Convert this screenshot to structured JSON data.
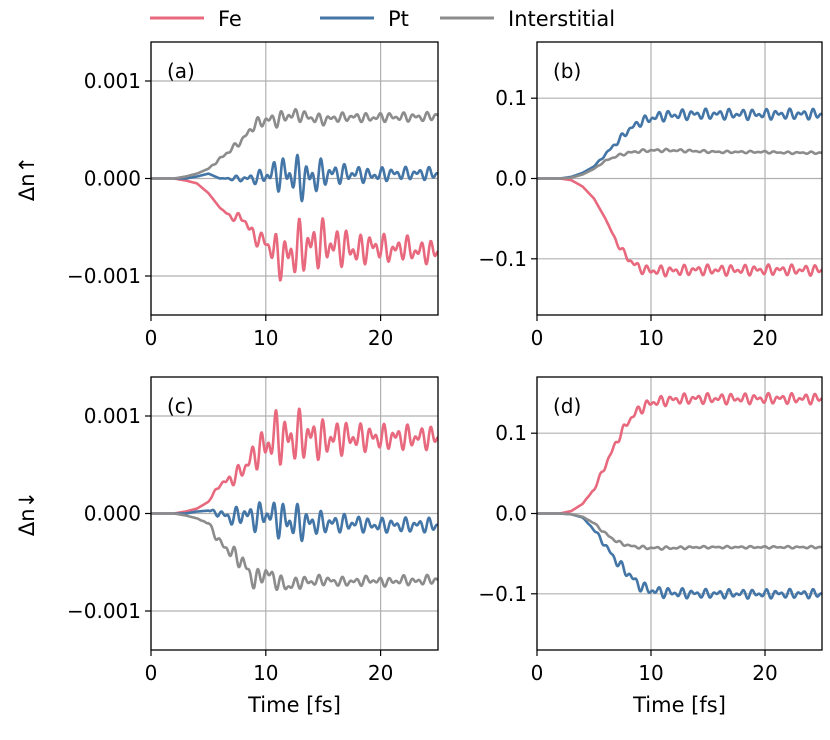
{
  "figure": {
    "legend": [
      {
        "label": "Fe",
        "color": "#e8697e"
      },
      {
        "label": "Pt",
        "color": "#4375a6"
      },
      {
        "label": "Interstitial",
        "color": "#8c8c8c"
      }
    ],
    "legend_placement": "top-center",
    "grid": true
  },
  "chart_data": [
    {
      "type": "line",
      "panel_label": "(a)",
      "ylabel": "Δn↑",
      "xlabel": "",
      "xlim": [
        0,
        25
      ],
      "ylim": [
        -0.0014,
        0.0014
      ],
      "xticks": [
        0,
        10,
        20
      ],
      "yticks": [
        -0.001,
        0,
        0.001
      ],
      "ytick_labels": [
        "−0.001",
        "0.000",
        "0.001"
      ],
      "series": [
        {
          "name": "Fe",
          "x": [
            0,
            2,
            3,
            4,
            5,
            6,
            7,
            8,
            9,
            10,
            11,
            12,
            13,
            14,
            15,
            16,
            17,
            18,
            19,
            20,
            21,
            22,
            23,
            24,
            25
          ],
          "y": [
            0,
            0,
            -2e-05,
            -5e-05,
            -0.00015,
            -0.0003,
            -0.0004,
            -0.0004,
            -0.0006,
            -0.00065,
            -0.0008,
            -0.0008,
            -0.0007,
            -0.0007,
            -0.00065,
            -0.0007,
            -0.0007,
            -0.00075,
            -0.0007,
            -0.0007,
            -0.00075,
            -0.0007,
            -0.00075,
            -0.00075,
            -0.00075
          ],
          "osc_amp": [
            0,
            0,
            0,
            0,
            0,
            0,
            3e-05,
            6e-05,
            8e-05,
            0.0001,
            0.00025,
            0.00028,
            0.0003,
            0.0003,
            0.00025,
            0.00022,
            0.0002,
            0.00018,
            0.00016,
            0.00015,
            0.00014,
            0.00014,
            0.00013,
            0.00013,
            0.00013
          ]
        },
        {
          "name": "Pt",
          "x": [
            0,
            2,
            3,
            4,
            5,
            6,
            7,
            8,
            9,
            10,
            11,
            12,
            13,
            14,
            15,
            16,
            17,
            18,
            19,
            20,
            21,
            22,
            23,
            24,
            25
          ],
          "y": [
            0,
            0,
            0,
            2e-05,
            5e-05,
            0,
            0,
            0,
            0,
            3e-05,
            5e-05,
            5e-05,
            0,
            0,
            5e-05,
            5e-05,
            5e-05,
            5e-05,
            3e-05,
            4e-05,
            5e-05,
            5e-05,
            5e-05,
            5e-05,
            5e-05
          ],
          "osc_amp": [
            0,
            0,
            0,
            0,
            0,
            0,
            2e-05,
            4e-05,
            6e-05,
            0.0001,
            0.00018,
            0.00022,
            0.00025,
            0.00022,
            0.00015,
            0.00012,
            0.0001,
            9e-05,
            8e-05,
            8e-05,
            7e-05,
            7e-05,
            7e-05,
            7e-05,
            7e-05
          ]
        },
        {
          "name": "Interstitial",
          "x": [
            0,
            2,
            3,
            4,
            5,
            6,
            7,
            8,
            9,
            10,
            11,
            12,
            13,
            14,
            15,
            16,
            17,
            18,
            19,
            20,
            21,
            22,
            23,
            24,
            25
          ],
          "y": [
            0,
            0,
            2e-05,
            5e-05,
            0.0001,
            0.0002,
            0.0003,
            0.0004,
            0.00055,
            0.0006,
            0.0006,
            0.00065,
            0.00065,
            0.00062,
            0.0006,
            0.00062,
            0.00063,
            0.00063,
            0.00062,
            0.00063,
            0.00063,
            0.00063,
            0.00063,
            0.00063,
            0.00065
          ],
          "osc_amp": [
            0,
            0,
            0,
            0,
            0,
            2e-05,
            3e-05,
            4e-05,
            6e-05,
            7e-05,
            8e-05,
            8e-05,
            7e-05,
            6e-05,
            6e-05,
            5e-05,
            5e-05,
            5e-05,
            5e-05,
            5e-05,
            5e-05,
            5e-05,
            5e-05,
            5e-05,
            5e-05
          ]
        }
      ]
    },
    {
      "type": "line",
      "panel_label": "(b)",
      "ylabel": "",
      "xlabel": "",
      "xlim": [
        0,
        25
      ],
      "ylim": [
        -0.17,
        0.17
      ],
      "xticks": [
        0,
        10,
        20
      ],
      "yticks": [
        -0.1,
        0,
        0.1
      ],
      "ytick_labels": [
        "−0.1",
        "0.0",
        "0.1"
      ],
      "series": [
        {
          "name": "Fe",
          "x": [
            0,
            2,
            3,
            4,
            5,
            6,
            7,
            8,
            9,
            10,
            11,
            12,
            14,
            16,
            18,
            20,
            22,
            24,
            25
          ],
          "y": [
            0,
            0,
            -0.002,
            -0.01,
            -0.025,
            -0.05,
            -0.08,
            -0.1,
            -0.112,
            -0.115,
            -0.115,
            -0.115,
            -0.114,
            -0.114,
            -0.114,
            -0.114,
            -0.114,
            -0.114,
            -0.114
          ],
          "osc_amp": [
            0,
            0,
            0,
            0,
            0,
            0,
            0.003,
            0.005,
            0.006,
            0.007,
            0.007,
            0.007,
            0.007,
            0.007,
            0.007,
            0.007,
            0.007,
            0.007,
            0.007
          ]
        },
        {
          "name": "Pt",
          "x": [
            0,
            2,
            3,
            4,
            5,
            6,
            7,
            8,
            9,
            10,
            11,
            12,
            14,
            16,
            18,
            20,
            22,
            24,
            25
          ],
          "y": [
            0,
            0,
            0.002,
            0.007,
            0.015,
            0.03,
            0.045,
            0.06,
            0.07,
            0.075,
            0.078,
            0.079,
            0.08,
            0.08,
            0.08,
            0.08,
            0.08,
            0.08,
            0.08
          ],
          "osc_amp": [
            0,
            0,
            0,
            0,
            0,
            0.002,
            0.004,
            0.005,
            0.006,
            0.007,
            0.007,
            0.007,
            0.007,
            0.007,
            0.007,
            0.007,
            0.007,
            0.007,
            0.007
          ]
        },
        {
          "name": "Interstitial",
          "x": [
            0,
            2,
            3,
            4,
            5,
            6,
            7,
            8,
            9,
            10,
            11,
            12,
            14,
            16,
            18,
            20,
            22,
            24,
            25
          ],
          "y": [
            0,
            0,
            0.001,
            0.005,
            0.012,
            0.022,
            0.028,
            0.032,
            0.034,
            0.035,
            0.035,
            0.035,
            0.034,
            0.033,
            0.033,
            0.033,
            0.032,
            0.032,
            0.032
          ],
          "osc_amp": [
            0,
            0,
            0,
            0,
            0,
            0.001,
            0.0015,
            0.002,
            0.002,
            0.002,
            0.002,
            0.002,
            0.0018,
            0.0015,
            0.0015,
            0.0015,
            0.0015,
            0.0015,
            0.0015
          ]
        }
      ]
    },
    {
      "type": "line",
      "panel_label": "(c)",
      "ylabel": "Δn↓",
      "xlabel": "Time [fs]",
      "xlim": [
        0,
        25
      ],
      "ylim": [
        -0.0014,
        0.0014
      ],
      "xticks": [
        0,
        10,
        20
      ],
      "yticks": [
        -0.001,
        0,
        0.001
      ],
      "ytick_labels": [
        "−0.001",
        "0.000",
        "0.001"
      ],
      "series": [
        {
          "name": "Fe",
          "x": [
            0,
            2,
            3,
            4,
            5,
            6,
            7,
            8,
            9,
            10,
            11,
            12,
            13,
            14,
            15,
            16,
            17,
            18,
            19,
            20,
            21,
            22,
            23,
            24,
            25
          ],
          "y": [
            0,
            0,
            2e-05,
            5e-05,
            0.00012,
            0.0003,
            0.00035,
            0.00045,
            0.0006,
            0.0007,
            0.0008,
            0.00075,
            0.0008,
            0.00078,
            0.00075,
            0.00078,
            0.00078,
            0.00078,
            0.00078,
            0.00078,
            0.00078,
            0.00078,
            0.00078,
            0.00078,
            0.00078
          ],
          "osc_amp": [
            0,
            0,
            0,
            0,
            0,
            3e-05,
            8e-05,
            0.0001,
            0.00015,
            0.00025,
            0.0003,
            0.0003,
            0.00028,
            0.00025,
            0.00022,
            0.0002,
            0.00018,
            0.00016,
            0.00015,
            0.00014,
            0.00014,
            0.00014,
            0.00013,
            0.00013,
            0.00013
          ]
        },
        {
          "name": "Pt",
          "x": [
            0,
            2,
            3,
            4,
            5,
            6,
            7,
            8,
            9,
            10,
            11,
            12,
            13,
            14,
            15,
            16,
            17,
            18,
            19,
            20,
            21,
            22,
            23,
            24,
            25
          ],
          "y": [
            0,
            0,
            0,
            2e-05,
            3e-05,
            0,
            -5e-05,
            0,
            -5e-05,
            0,
            -5e-05,
            -8e-05,
            -0.0001,
            -0.0001,
            -0.0001,
            -0.0001,
            -0.0001,
            -0.0001,
            -0.00012,
            -0.00012,
            -0.00012,
            -0.00012,
            -0.00012,
            -0.00012,
            -0.00012
          ],
          "osc_amp": [
            0,
            0,
            0,
            0,
            0,
            5e-05,
            8e-05,
            0.00012,
            0.00015,
            0.00015,
            0.0002,
            0.00022,
            0.0002,
            0.00015,
            0.00012,
            0.0001,
            0.0001,
            9e-05,
            8e-05,
            8e-05,
            8e-05,
            8e-05,
            8e-05,
            8e-05,
            8e-05
          ]
        },
        {
          "name": "Interstitial",
          "x": [
            0,
            2,
            3,
            4,
            5,
            6,
            7,
            8,
            9,
            10,
            11,
            12,
            13,
            14,
            15,
            16,
            17,
            18,
            19,
            20,
            21,
            22,
            23,
            24,
            25
          ],
          "y": [
            0,
            0,
            -2e-05,
            -5e-05,
            -0.0001,
            -0.0003,
            -0.0004,
            -0.0005,
            -0.0007,
            -0.0006,
            -0.0007,
            -0.00075,
            -0.0007,
            -0.0007,
            -0.00068,
            -0.0007,
            -0.0007,
            -0.0007,
            -0.00068,
            -0.0007,
            -0.0007,
            -0.00068,
            -0.0007,
            -0.00068,
            -0.00068
          ],
          "osc_amp": [
            0,
            0,
            0,
            0,
            2e-05,
            5e-05,
            8e-05,
            0.0001,
            0.0001,
            0.0001,
            9e-05,
            8e-05,
            7e-05,
            6e-05,
            6e-05,
            5e-05,
            5e-05,
            5e-05,
            5e-05,
            5e-05,
            5e-05,
            5e-05,
            5e-05,
            5e-05,
            5e-05
          ]
        }
      ]
    },
    {
      "type": "line",
      "panel_label": "(d)",
      "ylabel": "",
      "xlabel": "Time [fs]",
      "xlim": [
        0,
        25
      ],
      "ylim": [
        -0.17,
        0.17
      ],
      "xticks": [
        0,
        10,
        20
      ],
      "yticks": [
        -0.1,
        0,
        0.1
      ],
      "ytick_labels": [
        "−0.1",
        "0.0",
        "0.1"
      ],
      "series": [
        {
          "name": "Fe",
          "x": [
            0,
            2,
            3,
            4,
            5,
            6,
            7,
            8,
            9,
            10,
            11,
            12,
            14,
            16,
            18,
            20,
            22,
            24,
            25
          ],
          "y": [
            0,
            0,
            0.003,
            0.012,
            0.03,
            0.06,
            0.09,
            0.115,
            0.13,
            0.138,
            0.14,
            0.142,
            0.143,
            0.143,
            0.143,
            0.143,
            0.143,
            0.143,
            0.143
          ],
          "osc_amp": [
            0,
            0,
            0,
            0,
            0.002,
            0.004,
            0.005,
            0.006,
            0.007,
            0.007,
            0.007,
            0.007,
            0.007,
            0.007,
            0.007,
            0.007,
            0.007,
            0.007,
            0.007
          ]
        },
        {
          "name": "Pt",
          "x": [
            0,
            2,
            3,
            4,
            5,
            6,
            7,
            8,
            9,
            10,
            11,
            12,
            14,
            16,
            18,
            20,
            22,
            24,
            25
          ],
          "y": [
            0,
            0,
            -0.001,
            -0.005,
            -0.02,
            -0.04,
            -0.06,
            -0.075,
            -0.09,
            -0.096,
            -0.098,
            -0.099,
            -0.1,
            -0.1,
            -0.1,
            -0.1,
            -0.1,
            -0.1,
            -0.1
          ],
          "osc_amp": [
            0,
            0,
            0,
            0,
            0.002,
            0.004,
            0.006,
            0.007,
            0.007,
            0.007,
            0.007,
            0.007,
            0.006,
            0.006,
            0.006,
            0.006,
            0.006,
            0.006,
            0.006
          ]
        },
        {
          "name": "Interstitial",
          "x": [
            0,
            2,
            3,
            4,
            5,
            6,
            7,
            8,
            9,
            10,
            11,
            12,
            14,
            16,
            18,
            20,
            22,
            24,
            25
          ],
          "y": [
            0,
            0,
            -0.001,
            -0.004,
            -0.012,
            -0.025,
            -0.035,
            -0.04,
            -0.042,
            -0.043,
            -0.043,
            -0.043,
            -0.042,
            -0.042,
            -0.042,
            -0.042,
            -0.042,
            -0.042,
            -0.042
          ],
          "osc_amp": [
            0,
            0,
            0,
            0,
            0.001,
            0.002,
            0.002,
            0.002,
            0.002,
            0.002,
            0.002,
            0.002,
            0.0015,
            0.0015,
            0.0015,
            0.0015,
            0.0015,
            0.0015,
            0.0015
          ]
        }
      ]
    }
  ]
}
